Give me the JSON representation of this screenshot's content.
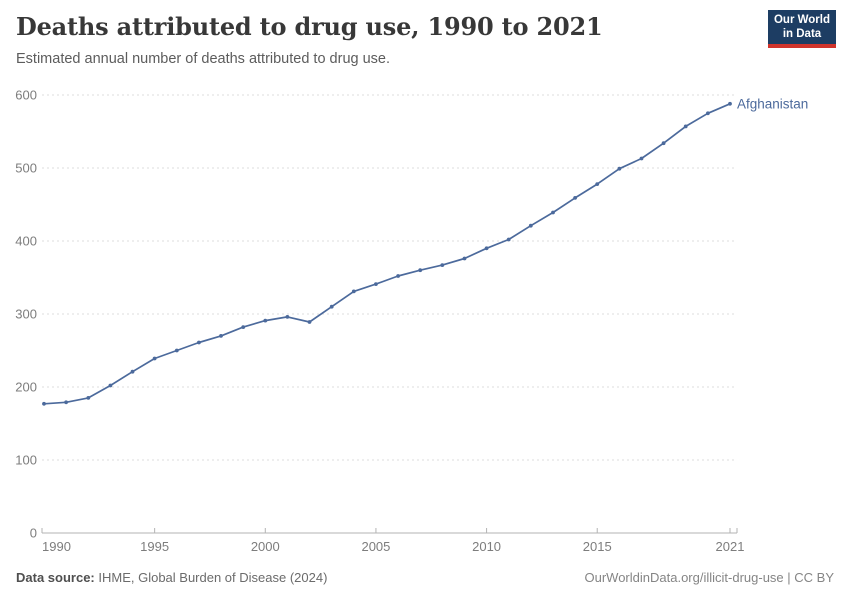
{
  "header": {
    "title": "Deaths attributed to drug use, 1990 to 2021",
    "subtitle": "Estimated annual number of deaths attributed to drug use.",
    "logo": {
      "line1": "Our World",
      "line2": "in Data"
    }
  },
  "chart_data": {
    "type": "line",
    "title": "Deaths attributed to drug use, 1990 to 2021",
    "subtitle": "Estimated annual number of deaths attributed to drug use.",
    "xlim": [
      1990,
      2021
    ],
    "ylim": [
      0,
      600
    ],
    "x_ticks": [
      1990,
      1995,
      2000,
      2005,
      2010,
      2015,
      2021
    ],
    "y_ticks": [
      0,
      100,
      200,
      300,
      400,
      500,
      600
    ],
    "grid": "horizontal-dashed",
    "legend": "entity-label-right",
    "series": [
      {
        "name": "Afghanistan",
        "color": "#4C6A9C",
        "x": [
          1990,
          1991,
          1992,
          1993,
          1994,
          1995,
          1996,
          1997,
          1998,
          1999,
          2000,
          2001,
          2002,
          2003,
          2004,
          2005,
          2006,
          2007,
          2008,
          2009,
          2010,
          2011,
          2012,
          2013,
          2014,
          2015,
          2016,
          2017,
          2018,
          2019,
          2020,
          2021
        ],
        "values": [
          177,
          179,
          185,
          202,
          221,
          239,
          250,
          261,
          270,
          282,
          291,
          296,
          289,
          310,
          331,
          341,
          352,
          360,
          367,
          376,
          390,
          402,
          421,
          439,
          459,
          478,
          499,
          513,
          534,
          557,
          575,
          588
        ]
      }
    ]
  },
  "footer": {
    "source_label": "Data source:",
    "source_text": " IHME, Global Burden of Disease (2024)",
    "link_text": "OurWorldinData.org/illicit-drug-use | CC BY"
  },
  "colors": {
    "line": "#4C6A9C",
    "grid": "#dcdcdc",
    "axis": "#b3b3b3",
    "tick_label": "#7d7d7d",
    "logo_bg": "#1d3d63",
    "logo_accent": "#d0342c"
  }
}
